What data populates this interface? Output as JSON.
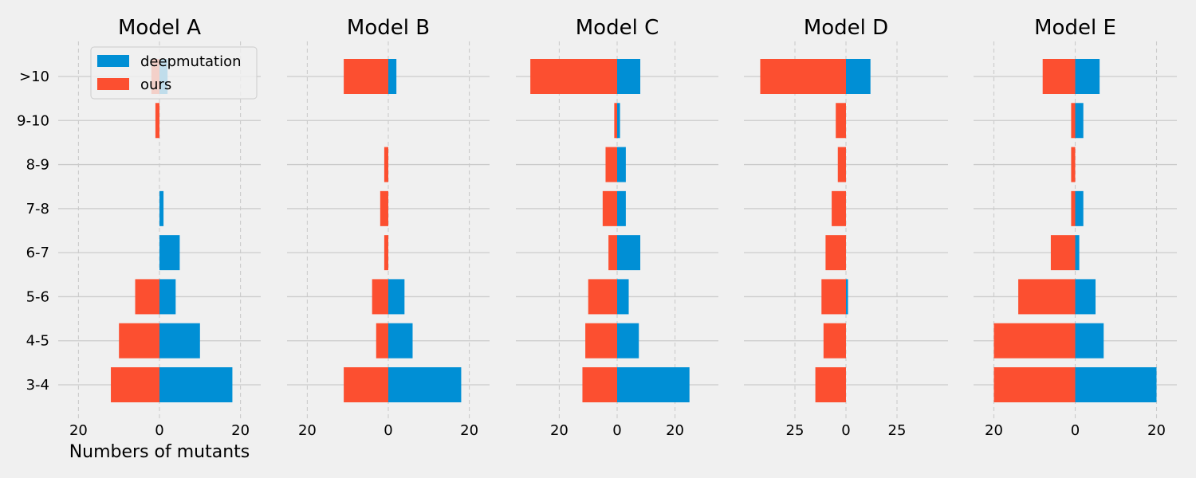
{
  "chart_data": {
    "type": "bar",
    "orientation": "horizontal-diverging",
    "categories": [
      "3-4",
      "4-5",
      "5-6",
      "6-7",
      "7-8",
      "8-9",
      "9-10",
      ">10"
    ],
    "xlabel": "Numbers of mutants",
    "legend": {
      "placement": "top-right of first panel",
      "entries": [
        "deepmutation",
        "ours"
      ]
    },
    "colors": {
      "deepmutation": "#008fd5",
      "ours": "#fc4f30",
      "grid": "#cbcbcb",
      "background": "#f0f0f0"
    },
    "grid": true,
    "panels": [
      {
        "title": "Model A",
        "xlim": [
          -25,
          25
        ],
        "xticks": [
          -20,
          0,
          20
        ],
        "xticklabels": [
          "20",
          "0",
          "20"
        ],
        "series": [
          {
            "name": "deepmutation",
            "values": [
              18,
              10,
              4,
              5,
              1,
              0,
              0,
              2
            ]
          },
          {
            "name": "ours",
            "values": [
              12,
              10,
              6,
              0,
              0,
              0,
              1,
              2
            ]
          }
        ]
      },
      {
        "title": "Model B",
        "xlim": [
          -25,
          25
        ],
        "xticks": [
          -20,
          0,
          20
        ],
        "xticklabels": [
          "20",
          "0",
          "20"
        ],
        "series": [
          {
            "name": "deepmutation",
            "values": [
              18,
              6,
              4,
              0,
              0,
              0,
              0,
              2
            ]
          },
          {
            "name": "ours",
            "values": [
              11,
              3,
              4,
              1,
              2,
              1,
              0,
              11
            ]
          }
        ]
      },
      {
        "title": "Model C",
        "xlim": [
          -35,
          35
        ],
        "xticks": [
          -20,
          0,
          20
        ],
        "xticklabels": [
          "20",
          "0",
          "20"
        ],
        "series": [
          {
            "name": "deepmutation",
            "values": [
              25,
              7.5,
              4,
              8,
              3,
              3,
              1,
              8
            ]
          },
          {
            "name": "ours",
            "values": [
              12,
              11,
              10,
              3,
              5,
              4,
              1,
              30
            ]
          }
        ]
      },
      {
        "title": "Model D",
        "xlim": [
          -50,
          50
        ],
        "xticks": [
          -25,
          0,
          25
        ],
        "xticklabels": [
          "25",
          "0",
          "25"
        ],
        "series": [
          {
            "name": "deepmutation",
            "values": [
              0,
              0,
              1,
              0,
              0,
              0,
              0,
              12
            ]
          },
          {
            "name": "ours",
            "values": [
              15,
              11,
              12,
              10,
              7,
              4,
              5,
              42
            ]
          }
        ]
      },
      {
        "title": "Model E",
        "xlim": [
          -25,
          25
        ],
        "xticks": [
          -20,
          0,
          20
        ],
        "xticklabels": [
          "20",
          "0",
          "20"
        ],
        "series": [
          {
            "name": "deepmutation",
            "values": [
              20,
              7,
              5,
              1,
              2,
              0,
              2,
              6
            ]
          },
          {
            "name": "ours",
            "values": [
              20,
              20,
              14,
              6,
              1,
              1,
              1,
              8
            ]
          }
        ]
      }
    ]
  }
}
